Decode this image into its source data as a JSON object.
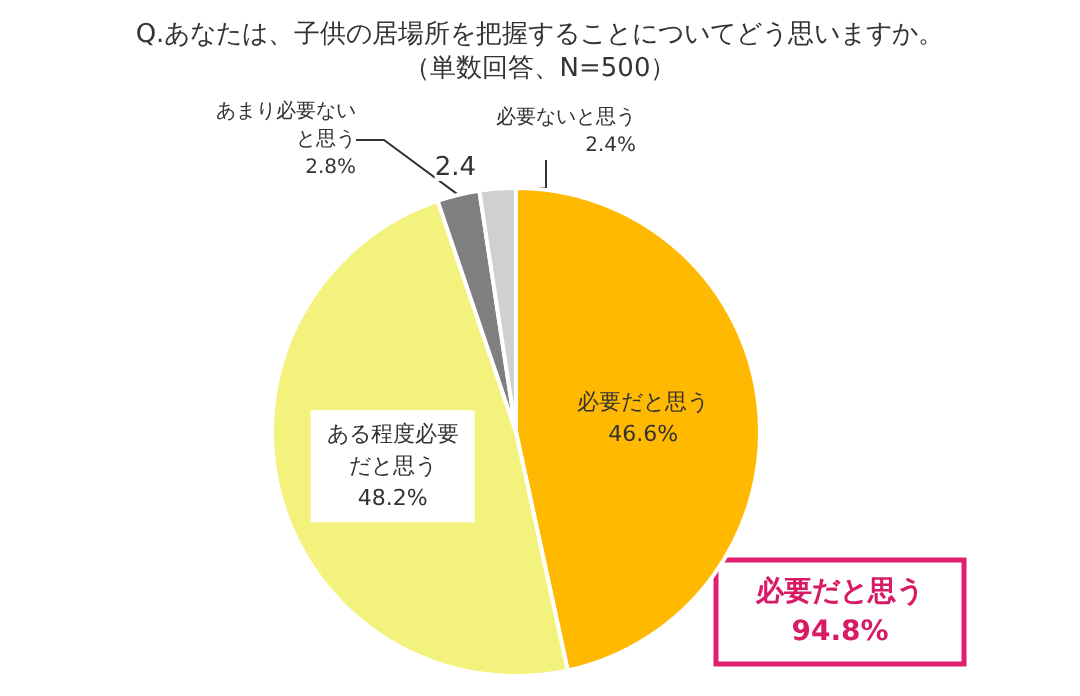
{
  "chart_data": {
    "type": "pie",
    "title": "Q.あなたは、子供の居場所を把握することについてどう思いますか。",
    "subtitle": "（単数回答、N=500）",
    "categories": [
      "必要だと思う",
      "ある程度必要だと思う",
      "あまり必要ないと思う",
      "必要ないと思う"
    ],
    "values": [
      46.6,
      48.2,
      2.8,
      2.4
    ],
    "colors": [
      "#ffb900",
      "#f3f27c",
      "#7f7f7f",
      "#d0d0d0"
    ],
    "value_labels": [
      "46.6%",
      "48.2%",
      "2.8%",
      "2.4%"
    ],
    "annotations": [
      "2.4",
      "必要だと思う\n94.8%"
    ]
  }
}
